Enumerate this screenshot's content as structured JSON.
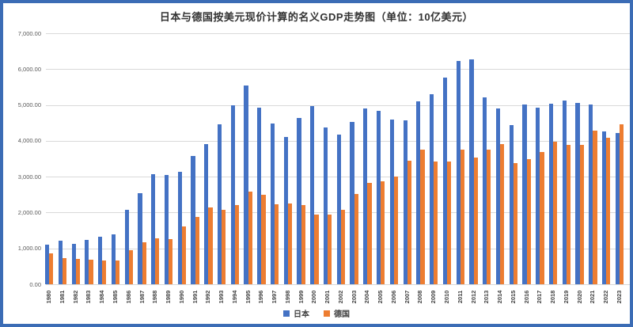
{
  "colors": {
    "japan_bar": "#4472C4",
    "germany_bar": "#ED7D31",
    "frame_border": "#3B6CB5",
    "gridline": "#D9D9D9",
    "axis_text": "#595959",
    "title_text": "#333333"
  },
  "chart_data": {
    "type": "bar",
    "title": "日本与德国按美元现价计算的名义GDP走势图（单位：10亿美元）",
    "unit_label": "10亿美元",
    "xlabel": "",
    "ylabel": "",
    "ylim": [
      0,
      7000
    ],
    "ytick_step": 1000,
    "yticks": [
      "0.00",
      "1,000.00",
      "2,000.00",
      "3,000.00",
      "4,000.00",
      "5,000.00",
      "6,000.00",
      "7,000.00"
    ],
    "grid": true,
    "legend_position": "bottom",
    "categories": [
      "1980",
      "1981",
      "1982",
      "1983",
      "1984",
      "1985",
      "1986",
      "1987",
      "1988",
      "1989",
      "1990",
      "1991",
      "1992",
      "1993",
      "1994",
      "1995",
      "1996",
      "1997",
      "1998",
      "1999",
      "2000",
      "2001",
      "2002",
      "2003",
      "2004",
      "2005",
      "2006",
      "2007",
      "2008",
      "2009",
      "2010",
      "2011",
      "2012",
      "2013",
      "2014",
      "2015",
      "2016",
      "2017",
      "2018",
      "2019",
      "2020",
      "2021",
      "2022",
      "2023"
    ],
    "series": [
      {
        "name": "日本",
        "color": "#4472C4",
        "values": [
          1105.4,
          1218.1,
          1134.2,
          1243.8,
          1318.1,
          1401.0,
          2078.1,
          2532.6,
          3071.7,
          3054.9,
          3132.8,
          3584.4,
          3908.8,
          4454.1,
          4998.8,
          5545.6,
          4923.4,
          4492.4,
          4098.4,
          4637.0,
          4968.4,
          4374.7,
          4182.8,
          4519.6,
          4893.1,
          4831.5,
          4601.7,
          4579.7,
          5106.7,
          5289.5,
          5759.1,
          6233.1,
          6272.4,
          5212.3,
          4897.0,
          4444.9,
          5003.7,
          4930.8,
          5040.9,
          5118.0,
          5048.8,
          5005.5,
          4256.4,
          4212.9
        ]
      },
      {
        "name": "德国",
        "color": "#ED7D31",
        "values": [
          853.7,
          720.3,
          696.0,
          694.1,
          654.8,
          664.5,
          949.0,
          1180.1,
          1270.0,
          1262.8,
          1601.0,
          1876.5,
          2136.5,
          2072.5,
          2210.4,
          2593.6,
          2504.4,
          2219.9,
          2243.2,
          2199.9,
          1950.6,
          1946.8,
          2080.6,
          2506.8,
          2819.5,
          2866.1,
          3002.4,
          3439.9,
          3752.4,
          3418.0,
          3417.3,
          3757.7,
          3544.0,
          3752.5,
          3898.7,
          3381.4,
          3495.2,
          3690.9,
          3974.4,
          3888.2,
          3887.7,
          4278.5,
          4085.7,
          4457.0
        ]
      }
    ]
  }
}
